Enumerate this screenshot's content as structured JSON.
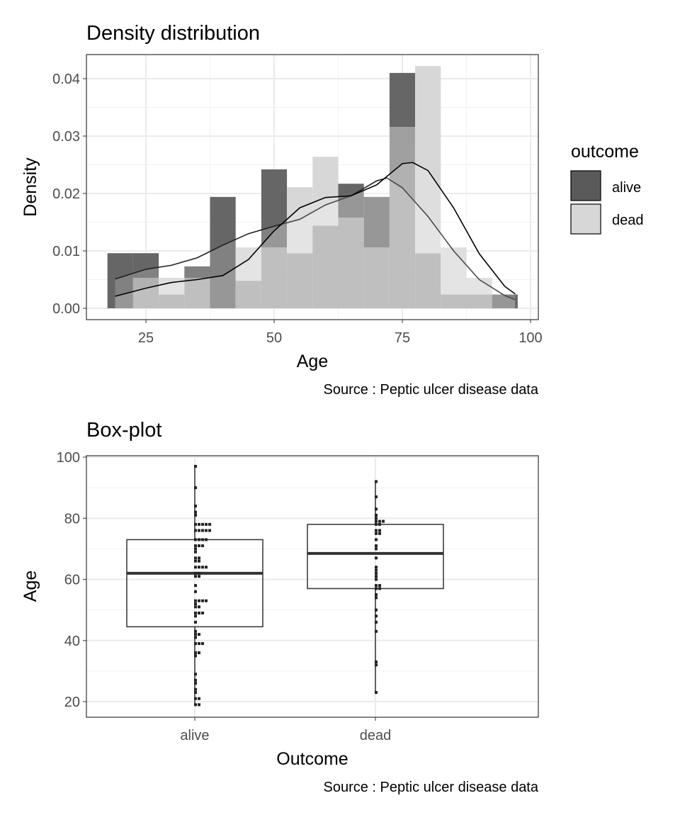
{
  "chart_data": [
    {
      "type": "histogram-density",
      "title": "Density distribution",
      "xlabel": "Age",
      "ylabel": "Density",
      "caption": "Source : Peptic ulcer disease data",
      "xlim": [
        14,
        102
      ],
      "ylim": [
        -0.002,
        0.044
      ],
      "xticks": [
        25,
        50,
        75,
        100
      ],
      "xtick_labels": [
        "25",
        "50",
        "75",
        "100"
      ],
      "yticks": [
        0,
        0.01,
        0.02,
        0.03,
        0.04
      ],
      "ytick_labels": [
        "0.00",
        "0.01",
        "0.02",
        "0.03",
        "0.04"
      ],
      "grid": true,
      "legend": {
        "title": "outcome",
        "position": "right",
        "entries": [
          "alive",
          "dead"
        ]
      },
      "bin_edges": [
        17.5,
        22.5,
        27.5,
        32.5,
        37.5,
        42.5,
        47.5,
        52.5,
        57.5,
        62.5,
        67.5,
        72.5,
        77.5,
        82.5,
        87.5,
        92.5,
        97.5
      ],
      "series": [
        {
          "name": "alive",
          "color": "#666666",
          "hist_density": [
            0.0096,
            0.0096,
            0.0024,
            0.0073,
            0.0194,
            0.0048,
            0.0242,
            0.0096,
            0.0144,
            0.0217,
            0.0194,
            0.041,
            0.0096,
            0.0024,
            0.0024,
            0.0024
          ],
          "kde_x": [
            19,
            25,
            30,
            35,
            40,
            45,
            50,
            55,
            60,
            65,
            70,
            72,
            75,
            80,
            85,
            90,
            95,
            97
          ],
          "kde_y": [
            0.0051,
            0.0068,
            0.0075,
            0.0088,
            0.011,
            0.013,
            0.0143,
            0.0155,
            0.018,
            0.0196,
            0.0222,
            0.0227,
            0.021,
            0.016,
            0.01,
            0.005,
            0.0022,
            0.0015
          ]
        },
        {
          "name": "dead",
          "color": "#d7d7d7",
          "hist_density": [
            0,
            0.0053,
            0.0053,
            0.0053,
            0,
            0.0106,
            0.0106,
            0.0211,
            0.0264,
            0.0158,
            0.0106,
            0.0316,
            0.0422,
            0.0106,
            0.0053,
            0
          ],
          "kde_x": [
            19,
            25,
            30,
            35,
            40,
            45,
            50,
            55,
            60,
            65,
            70,
            75,
            77,
            80,
            85,
            90,
            95,
            97
          ],
          "kde_y": [
            0.0021,
            0.0035,
            0.0045,
            0.005,
            0.0057,
            0.0085,
            0.0135,
            0.0175,
            0.0193,
            0.0196,
            0.0215,
            0.0252,
            0.0254,
            0.024,
            0.0175,
            0.0095,
            0.0038,
            0.0025
          ]
        }
      ]
    },
    {
      "type": "boxplot",
      "title": "Box-plot",
      "xlabel": "Outcome",
      "ylabel": "Age",
      "caption": "Source : Peptic ulcer disease data",
      "ylim": [
        17.5,
        103
      ],
      "yticks": [
        20,
        40,
        60,
        80,
        100
      ],
      "ytick_labels": [
        "20",
        "40",
        "60",
        "80",
        "100"
      ],
      "categories": [
        "alive",
        "dead"
      ],
      "grid": true,
      "boxes": [
        {
          "name": "alive",
          "min": 19,
          "q1": 44.5,
          "median": 62,
          "q3": 73,
          "max": 97,
          "points": [
            97,
            90,
            84,
            82,
            81,
            78,
            78,
            78,
            78,
            78,
            76,
            76,
            76,
            76,
            76,
            73,
            73,
            73,
            73,
            71,
            71,
            71,
            70,
            69,
            67,
            67,
            66,
            66,
            64,
            64,
            64,
            64,
            62,
            62,
            61,
            61,
            58,
            56,
            53,
            53,
            53,
            53,
            52,
            51,
            51,
            49,
            49,
            49,
            48,
            46,
            43,
            42,
            42,
            41,
            39,
            39,
            39,
            36,
            36,
            35,
            29,
            27,
            26,
            24,
            23,
            21,
            21,
            19,
            19
          ]
        },
        {
          "name": "dead",
          "min": 23,
          "q1": 57,
          "median": 68.5,
          "q3": 78,
          "max": 92,
          "points": [
            92,
            87,
            83,
            81,
            80,
            79,
            79,
            79,
            78,
            78,
            76,
            76,
            75,
            75,
            73,
            71,
            70,
            67,
            64,
            63,
            62,
            61,
            60,
            58,
            58,
            57,
            57,
            55,
            54,
            50,
            48,
            46,
            43,
            33,
            32,
            23
          ]
        }
      ]
    }
  ]
}
